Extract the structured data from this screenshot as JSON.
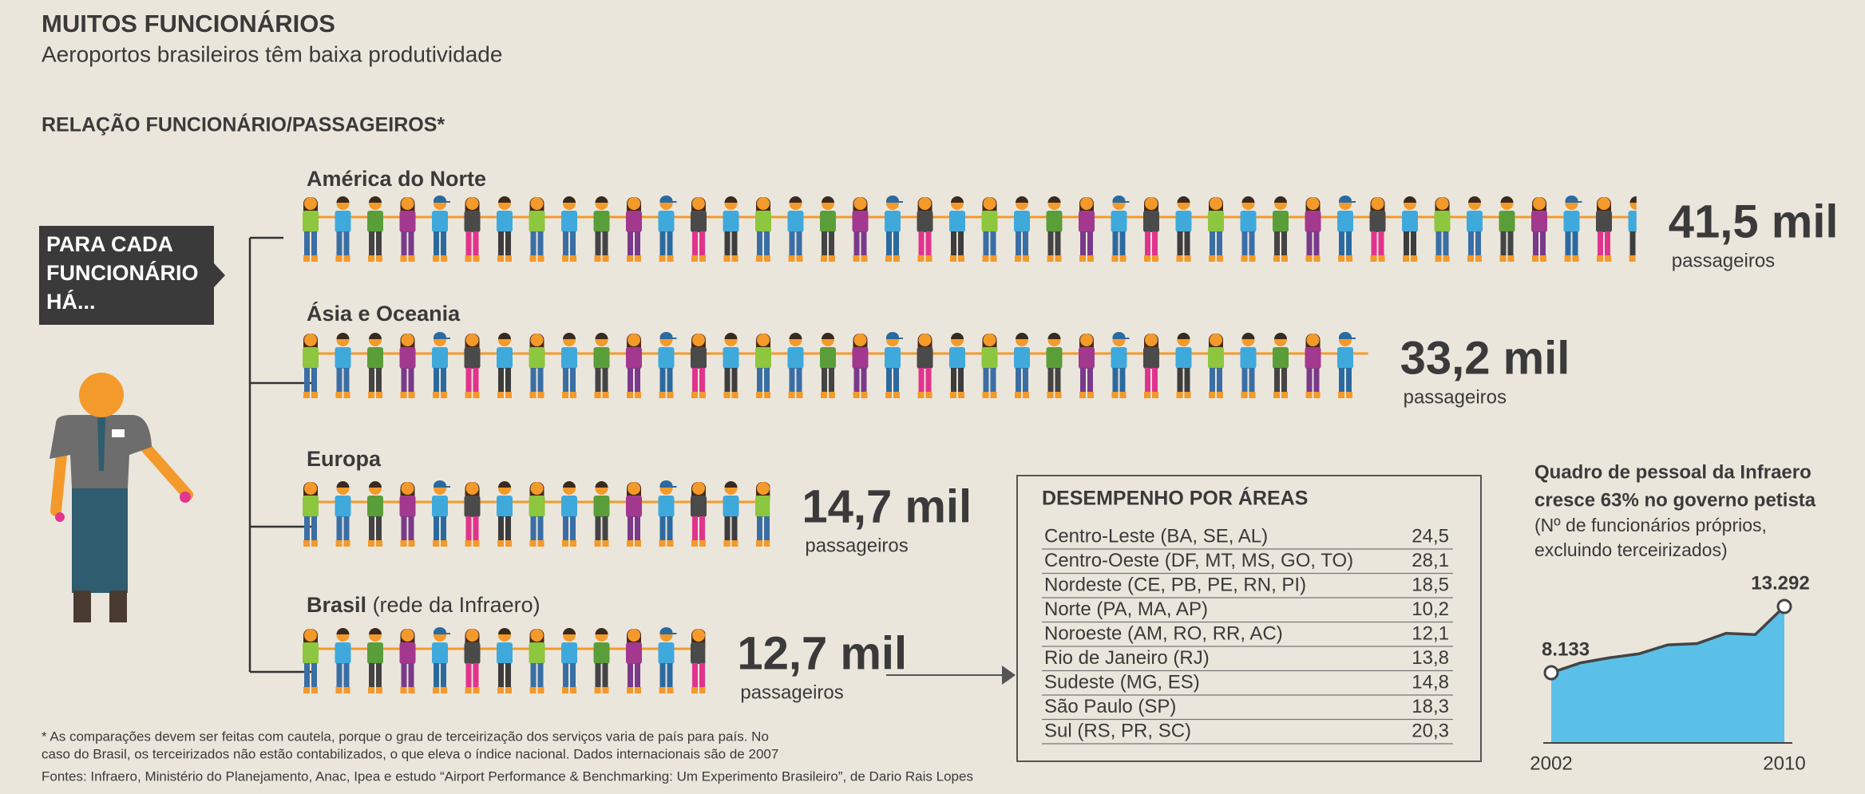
{
  "header": {
    "title": "MUITOS FUNCIONÁRIOS",
    "subtitle": "Aeroportos brasileiros têm baixa produtividade",
    "section": "RELAÇÃO FUNCIONÁRIO/PASSAGEIROS*"
  },
  "panel": {
    "lines": [
      "PARA CADA",
      "FUNCIONÁRIO",
      "HÁ..."
    ]
  },
  "regions": [
    {
      "name": "América do Norte",
      "value": 41.5,
      "value_label": "41,5 mil",
      "unit": "passageiros"
    },
    {
      "name": "Ásia e Oceania",
      "value": 33.2,
      "value_label": "33,2 mil",
      "unit": "passageiros"
    },
    {
      "name": "Europa",
      "value": 14.7,
      "value_label": "14,7 mil",
      "unit": "passageiros"
    },
    {
      "name": "Brasil",
      "note": "(rede da Infraero)",
      "value": 12.7,
      "value_label": "12,7 mil",
      "unit": "passageiros"
    }
  ],
  "table": {
    "title": "DESEMPENHO POR ÁREAS",
    "rows": [
      [
        "Centro-Leste (BA, SE, AL)",
        "24,5"
      ],
      [
        "Centro-Oeste (DF, MT, MS, GO, TO)",
        "28,1"
      ],
      [
        "Nordeste (CE, PB, PE, RN, PI)",
        "18,5"
      ],
      [
        "Norte (PA, MA, AP)",
        "10,2"
      ],
      [
        "Noroeste (AM, RO, RR, AC)",
        "12,1"
      ],
      [
        "Rio de Janeiro (RJ)",
        "13,8"
      ],
      [
        "Sudeste (MG, ES)",
        "14,8"
      ],
      [
        "São Paulo (SP)",
        "18,3"
      ],
      [
        "Sul (RS, PR, SC)",
        "20,3"
      ]
    ]
  },
  "chart_data": {
    "type": "area",
    "title_lines": [
      "Quadro de pessoal da Infraero",
      "cresce 63% no governo petista"
    ],
    "subtitle_lines": [
      "(Nº de funcionários próprios,",
      "excluindo terceirizados)"
    ],
    "categories": [
      "2002",
      null,
      null,
      null,
      null,
      null,
      null,
      null,
      "2010"
    ],
    "values": [
      8133,
      8900,
      9300,
      9600,
      10300,
      10400,
      11200,
      11100,
      13292
    ],
    "value_labels": [
      "8.133",
      null,
      null,
      null,
      null,
      null,
      null,
      null,
      "13.292"
    ],
    "color": "#5bc0e8"
  },
  "footnotes": [
    "* As comparações devem ser feitas com cautela, porque o grau de terceirização dos serviços varia de país para país. No",
    "caso do Brasil, os terceirizados não estão contabilizados, o que eleva o índice nacional. Dados internacionais são de 2007",
    "Fontes: Infraero, Ministério do Planejamento, Anac, Ipea e estudo “Airport Performance & Benchmarking: Um Experimento Brasileiro”, de Dario Rais Lopes"
  ]
}
